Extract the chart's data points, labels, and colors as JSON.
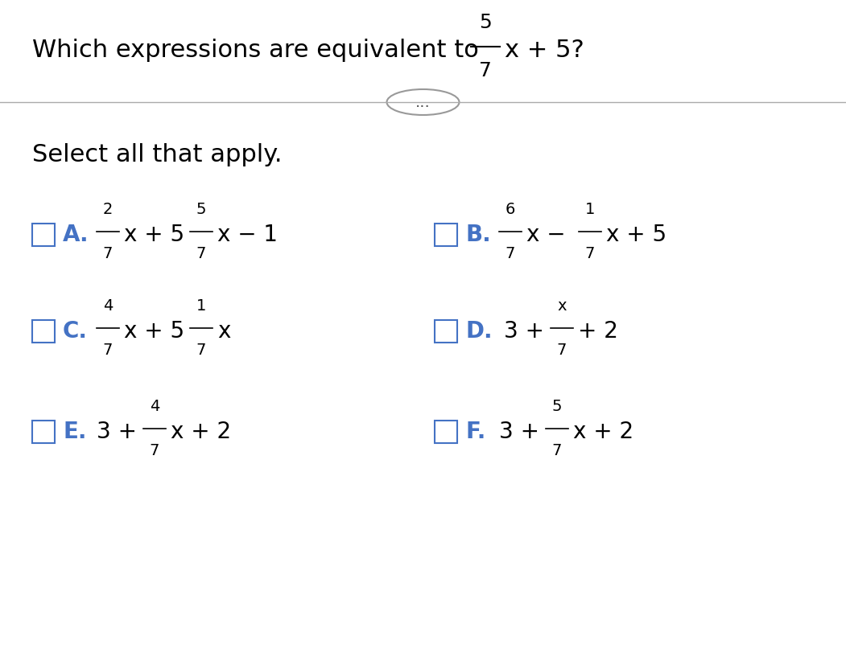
{
  "background_color": "#ffffff",
  "title_text": "Which expressions are equivalent to",
  "title_fraction_num": "5",
  "title_fraction_den": "7",
  "title_suffix": "x + 5?",
  "separator_text": "...",
  "subtitle": "Select all that apply.",
  "options": [
    {
      "label": "A.",
      "expr_parts": [
        {
          "type": "frac_x",
          "num": "2",
          "den": "7",
          "prefix": "",
          "suffix": ""
        },
        {
          "type": "text",
          "text": "x + 5"
        },
        {
          "type": "frac_x",
          "num": "5",
          "den": "7",
          "prefix": "",
          "suffix": ""
        },
        {
          "type": "text",
          "text": "x − 1"
        }
      ],
      "col": 0,
      "row": 0
    },
    {
      "label": "B.",
      "expr_parts": [
        {
          "type": "frac_x",
          "num": "6",
          "den": "7",
          "prefix": "",
          "suffix": ""
        },
        {
          "type": "text",
          "text": "x −"
        },
        {
          "type": "frac_x",
          "num": "1",
          "den": "7",
          "prefix": "",
          "suffix": ""
        },
        {
          "type": "text",
          "text": "x + 5"
        }
      ],
      "col": 1,
      "row": 0
    },
    {
      "label": "C.",
      "expr_parts": [
        {
          "type": "frac_x",
          "num": "4",
          "den": "7",
          "prefix": "",
          "suffix": ""
        },
        {
          "type": "text",
          "text": "x + 5"
        },
        {
          "type": "frac_x",
          "num": "1",
          "den": "7",
          "prefix": "",
          "suffix": ""
        },
        {
          "type": "text",
          "text": "x"
        }
      ],
      "col": 0,
      "row": 1
    },
    {
      "label": "D.",
      "expr_parts": [
        {
          "type": "text",
          "text": "3 +"
        },
        {
          "type": "frac_x_only",
          "num": "x",
          "den": "7",
          "prefix": "",
          "suffix": ""
        },
        {
          "type": "text",
          "text": "+ 2"
        }
      ],
      "col": 1,
      "row": 1
    },
    {
      "label": "E.",
      "expr_parts": [
        {
          "type": "text",
          "text": "3 +"
        },
        {
          "type": "frac_x",
          "num": "4",
          "den": "7",
          "prefix": "",
          "suffix": ""
        },
        {
          "type": "text",
          "text": "x + 2"
        }
      ],
      "col": 0,
      "row": 2
    },
    {
      "label": "F.",
      "expr_parts": [
        {
          "type": "text",
          "text": "3 +"
        },
        {
          "type": "frac_x",
          "num": "5",
          "den": "7",
          "prefix": "",
          "suffix": ""
        },
        {
          "type": "text",
          "text": "x + 2"
        }
      ],
      "col": 1,
      "row": 2
    }
  ],
  "label_color": "#4472c4",
  "text_color": "#000000",
  "checkbox_color": "#4472c4",
  "font_size_title": 22,
  "font_size_option": 20,
  "font_size_small": 15,
  "font_size_subtitle": 22
}
